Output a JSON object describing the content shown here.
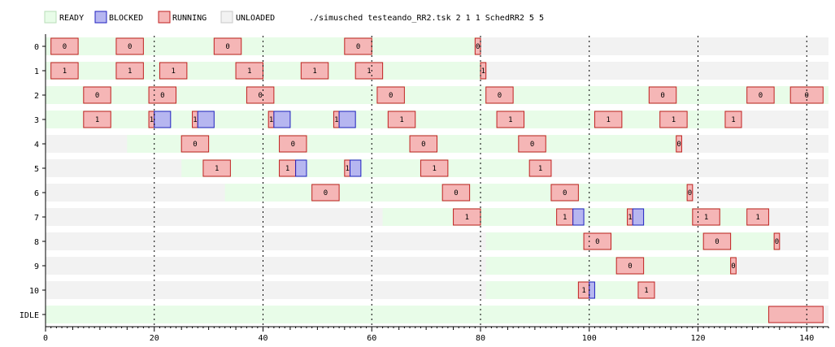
{
  "legend": {
    "items": [
      {
        "label": "READY",
        "color": "#e8fce8",
        "stroke": "#c8eec8"
      },
      {
        "label": "BLOCKED",
        "color": "#b6b6f0",
        "stroke": "#2020c0"
      },
      {
        "label": "RUNNING",
        "color": "#f5b6b6",
        "stroke": "#c02020"
      },
      {
        "label": "UNLOADED",
        "color": "#f2f2f2",
        "stroke": "#c8c8c8"
      }
    ],
    "command": "./simusched testeando_RR2.tsk 2 1 1 SchedRR2 5 5"
  },
  "chart_data": {
    "type": "gantt",
    "xlim": [
      0,
      144
    ],
    "xticks": [
      0,
      20,
      40,
      60,
      80,
      100,
      120,
      140
    ],
    "colors": {
      "ready": "#e8fce8",
      "blocked": "#b6b6f0",
      "running": "#f5b6b6",
      "unloaded": "#f2f2f2"
    },
    "rows": [
      {
        "label": "0",
        "load": 0,
        "end": 80,
        "running": [
          [
            1,
            6,
            "0"
          ],
          [
            13,
            18,
            "0"
          ],
          [
            31,
            36,
            "0"
          ],
          [
            55,
            60,
            "0"
          ],
          [
            79,
            80,
            "0"
          ]
        ],
        "blocked": []
      },
      {
        "label": "1",
        "load": 0,
        "end": 81,
        "running": [
          [
            1,
            6,
            "1"
          ],
          [
            13,
            18,
            "1"
          ],
          [
            21,
            26,
            "1"
          ],
          [
            35,
            40,
            "1"
          ],
          [
            47,
            52,
            "1"
          ],
          [
            57,
            62,
            "1"
          ],
          [
            80,
            81,
            "1"
          ]
        ],
        "blocked": []
      },
      {
        "label": "2",
        "load": 0,
        "end": 144,
        "running": [
          [
            7,
            12,
            "0"
          ],
          [
            19,
            24,
            "0"
          ],
          [
            37,
            42,
            "0"
          ],
          [
            61,
            66,
            "0"
          ],
          [
            81,
            86,
            "0"
          ],
          [
            111,
            116,
            "0"
          ],
          [
            129,
            134,
            "0"
          ],
          [
            137,
            143,
            "0"
          ]
        ],
        "blocked": []
      },
      {
        "label": "3",
        "load": 0,
        "end": 127,
        "running": [
          [
            7,
            12,
            "1"
          ],
          [
            19,
            20,
            "1"
          ],
          [
            27,
            28,
            "1"
          ],
          [
            41,
            42,
            "1"
          ],
          [
            53,
            54,
            "1"
          ],
          [
            63,
            68,
            "1"
          ],
          [
            83,
            88,
            "1"
          ],
          [
            101,
            106,
            "1"
          ],
          [
            113,
            118,
            "1"
          ],
          [
            125,
            128,
            "1"
          ]
        ],
        "blocked": [
          [
            20,
            23
          ],
          [
            28,
            31
          ],
          [
            42,
            45
          ],
          [
            54,
            57
          ]
        ]
      },
      {
        "label": "4",
        "load": 15,
        "end": 117,
        "running": [
          [
            25,
            30,
            "0"
          ],
          [
            43,
            48,
            "0"
          ],
          [
            67,
            72,
            "0"
          ],
          [
            87,
            92,
            "0"
          ],
          [
            116,
            117,
            "0"
          ]
        ],
        "blocked": []
      },
      {
        "label": "5",
        "load": 25,
        "end": 91,
        "running": [
          [
            29,
            34,
            "1"
          ],
          [
            43,
            46,
            "1"
          ],
          [
            55,
            56,
            "1"
          ],
          [
            69,
            74,
            "1"
          ],
          [
            89,
            93,
            "1"
          ]
        ],
        "blocked": [
          [
            46,
            48
          ],
          [
            56,
            58
          ]
        ]
      },
      {
        "label": "6",
        "load": 33,
        "end": 119,
        "running": [
          [
            49,
            54,
            "0"
          ],
          [
            73,
            78,
            "0"
          ],
          [
            93,
            98,
            "0"
          ],
          [
            118,
            119,
            "0"
          ]
        ],
        "blocked": []
      },
      {
        "label": "7",
        "load": 62,
        "end": 133,
        "running": [
          [
            75,
            80,
            "1"
          ],
          [
            94,
            97,
            "1"
          ],
          [
            107,
            108,
            "1"
          ],
          [
            119,
            124,
            "1"
          ],
          [
            129,
            133,
            "1"
          ]
        ],
        "blocked": [
          [
            97,
            99
          ],
          [
            108,
            110
          ]
        ]
      },
      {
        "label": "8",
        "load": 81,
        "end": 135,
        "running": [
          [
            99,
            104,
            "0"
          ],
          [
            121,
            126,
            "0"
          ],
          [
            134,
            135,
            "0"
          ]
        ],
        "blocked": []
      },
      {
        "label": "9",
        "load": 81,
        "end": 127,
        "running": [
          [
            105,
            110,
            "0"
          ],
          [
            126,
            127,
            "0"
          ]
        ],
        "blocked": []
      },
      {
        "label": "10",
        "load": 81,
        "end": 111,
        "running": [
          [
            98,
            100,
            "1"
          ],
          [
            109,
            112,
            "1"
          ]
        ],
        "blocked": [
          [
            100,
            101
          ]
        ]
      },
      {
        "label": "IDLE",
        "load": 0,
        "end": 133,
        "running": [
          [
            133,
            143,
            ""
          ]
        ],
        "blocked": []
      }
    ]
  }
}
